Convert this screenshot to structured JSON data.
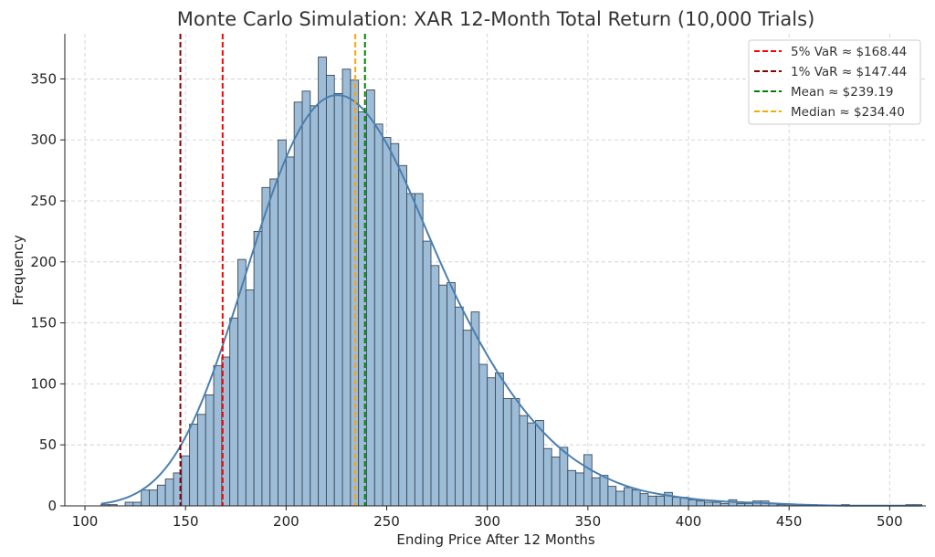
{
  "chart_data": {
    "type": "bar",
    "title": "Monte Carlo Simulation: XAR 12-Month Total Return (10,000 Trials)",
    "xlabel": "Ending Price After 12 Months",
    "ylabel": "Frequency",
    "xlim": [
      90,
      518
    ],
    "ylim": [
      0,
      387
    ],
    "xticks": [
      100,
      150,
      200,
      250,
      300,
      350,
      400,
      450,
      500
    ],
    "yticks": [
      0,
      50,
      100,
      150,
      200,
      250,
      300,
      350
    ],
    "grid": true,
    "bin_start": 108,
    "bin_width": 4.0,
    "counts": [
      1,
      1,
      0,
      3,
      3,
      13,
      13,
      17,
      22,
      27,
      41,
      67,
      75,
      91,
      115,
      122,
      154,
      202,
      177,
      225,
      261,
      268,
      300,
      286,
      331,
      340,
      328,
      368,
      353,
      338,
      358,
      349,
      323,
      341,
      313,
      302,
      297,
      279,
      256,
      256,
      217,
      197,
      181,
      183,
      163,
      144,
      159,
      116,
      105,
      109,
      88,
      88,
      74,
      68,
      70,
      47,
      40,
      48,
      29,
      27,
      42,
      23,
      25,
      16,
      12,
      15,
      13,
      10,
      8,
      8,
      11,
      7,
      7,
      5,
      4,
      3,
      3,
      2,
      5,
      2,
      2,
      4,
      4,
      2,
      1,
      1,
      1,
      0,
      1,
      0,
      0,
      0,
      1,
      0,
      0,
      0,
      0,
      0,
      0,
      0,
      1,
      1
    ],
    "bar_color": "#9dbcd8",
    "kde_color": "#4a7fb0",
    "vlines": [
      {
        "label": "5% VaR ≈ $168.44",
        "x": 168.44,
        "color": "#ff0000"
      },
      {
        "label": "1% VaR ≈ $147.44",
        "x": 147.44,
        "color": "#8b0000"
      },
      {
        "label": "Mean ≈ $239.19",
        "x": 239.19,
        "color": "#008000"
      },
      {
        "label": "Median ≈ $234.40",
        "x": 234.4,
        "color": "#ffa500"
      }
    ],
    "legend_position": "top-right"
  }
}
